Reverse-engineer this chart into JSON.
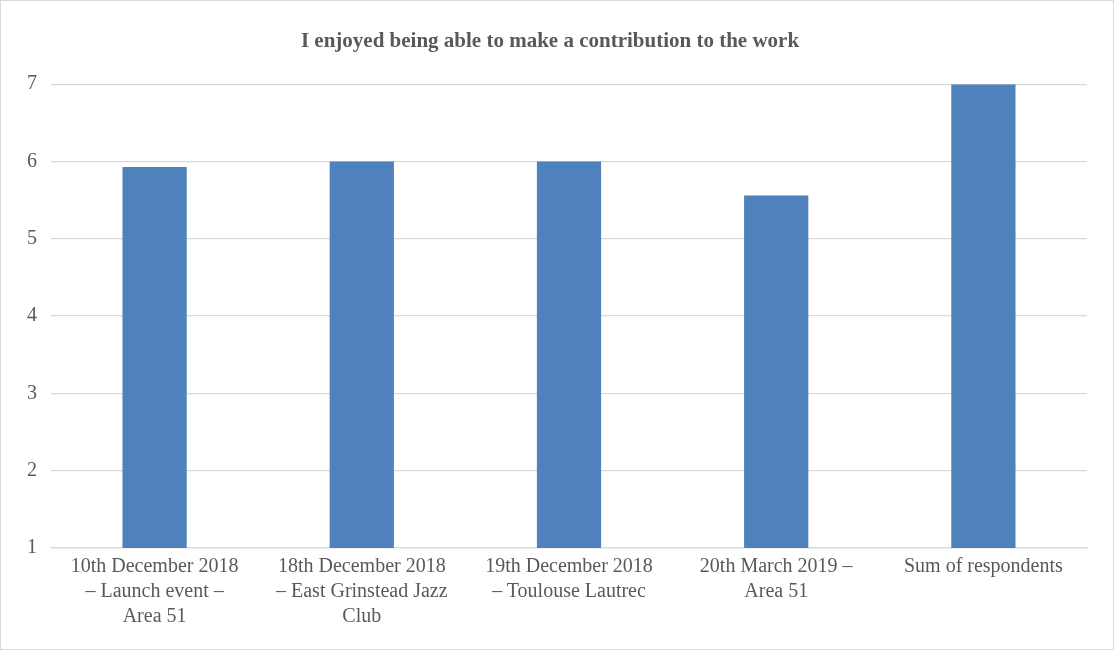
{
  "chart_data": {
    "type": "bar",
    "title": "I enjoyed being able to make a contribution to the work",
    "categories": [
      "10th December 2018 – Launch event – Area 51",
      "18th December 2018 – East Grinstead Jazz Club",
      "19th December 2018 – Toulouse Lautrec",
      "20th March 2019 – Area 51",
      "Sum of respondents"
    ],
    "values": [
      5.93,
      6,
      6,
      5.56,
      7
    ],
    "color": "#4f81bd",
    "ylim": [
      1,
      7
    ],
    "yticks": [
      1,
      2,
      3,
      4,
      5,
      6,
      7
    ],
    "grid": "y",
    "legend": false
  }
}
